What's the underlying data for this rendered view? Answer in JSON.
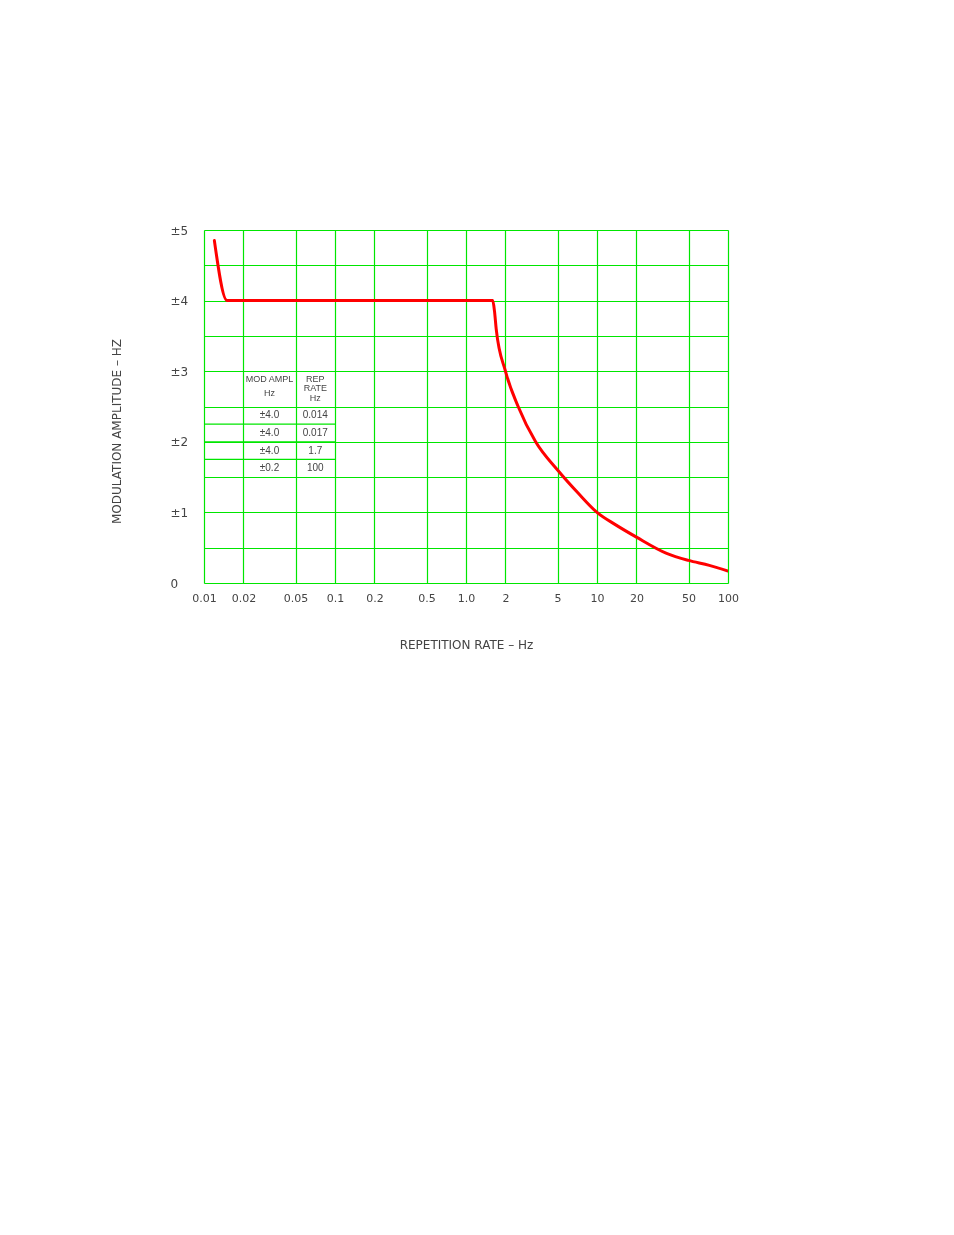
{
  "chart_data": {
    "type": "line",
    "xlabel": "REPETITION RATE – Hz",
    "ylabel": "MODULATION AMPLITUDE – HZ",
    "x": [
      0.012,
      0.015,
      1.6,
      1.65,
      1.7,
      2,
      2.5,
      3.4,
      5,
      7.2,
      10,
      14,
      20,
      34,
      50,
      72,
      100
    ],
    "series": [
      {
        "color": "#ff0000",
        "values": [
          4.85,
          4.0,
          4.0,
          3.85,
          3.6,
          3.0,
          2.5,
          2.0,
          1.6,
          1.27,
          1.0,
          0.82,
          0.65,
          0.42,
          0.32,
          0.25,
          0.17
        ]
      }
    ],
    "log": "x",
    "xlim": [
      0.01,
      100
    ],
    "ylim": [
      0,
      5
    ],
    "xticks": [
      0.01,
      0.02,
      0.05,
      0.1,
      0.2,
      0.5,
      {
        "value": 1,
        "label": "1.0"
      },
      2,
      5,
      10,
      20,
      50,
      100
    ],
    "yticks": [
      0,
      {
        "value": 0.5,
        "label": null
      },
      {
        "value": 1,
        "label": "±1"
      },
      {
        "value": 1.5,
        "label": null
      },
      {
        "value": 2,
        "label": "±2"
      },
      {
        "value": 2.5,
        "label": null
      },
      {
        "value": 3,
        "label": "±3"
      },
      {
        "value": 3.5,
        "label": null
      },
      {
        "value": 4,
        "label": "±4"
      },
      {
        "value": 4.5,
        "label": null
      },
      {
        "value": 5,
        "label": "±5"
      }
    ],
    "grid": true,
    "annotations": [
      "MOD AMPL\nHz",
      "REP\nRATE\nHz",
      "±4.0",
      "0.014",
      "±4.0",
      "0.017",
      "±4.0",
      "1.7",
      "±0.2",
      "100"
    ]
  }
}
